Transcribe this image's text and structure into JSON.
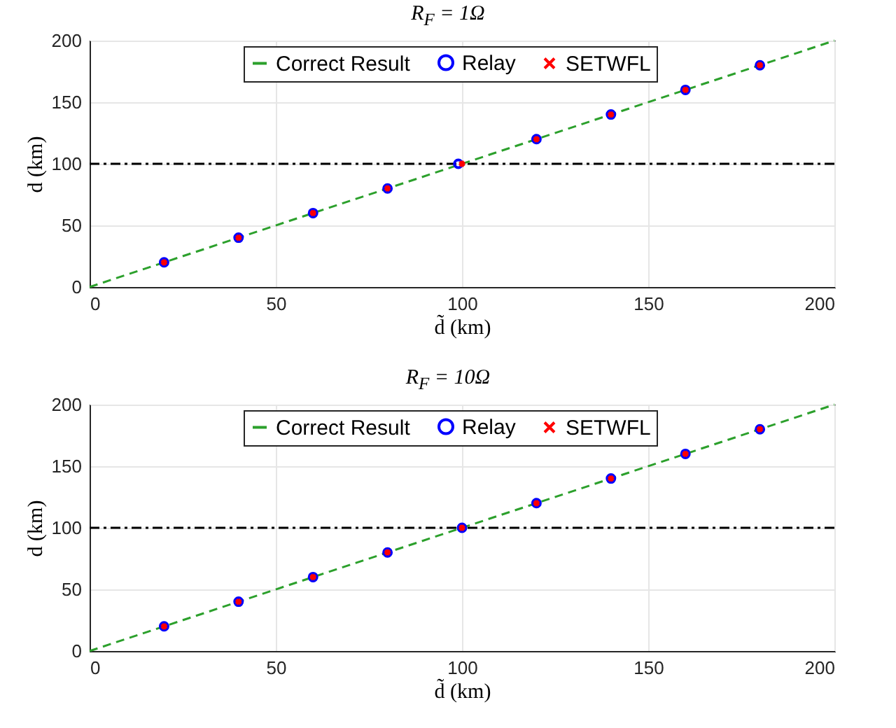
{
  "chart_data": [
    {
      "type": "scatter",
      "title": "R$_{F}$ = 1Ω",
      "xlabel": "d̃ (km)",
      "ylabel": "d (km)",
      "xlim": [
        0,
        200
      ],
      "ylim": [
        0,
        200
      ],
      "xticks": [
        0,
        50,
        100,
        150,
        200
      ],
      "yticks": [
        0,
        50,
        100,
        150,
        200
      ],
      "grid": true,
      "legend": "top",
      "series": [
        {
          "name": "Correct Result",
          "type": "line",
          "line_style": "dashed",
          "marker": "none",
          "color": "#2ca02c",
          "x": [
            0,
            200
          ],
          "values": [
            0,
            200
          ]
        },
        {
          "name": "Relay",
          "type": "scatter",
          "marker": "circle",
          "color": "#0000ff",
          "x": [
            20,
            40,
            60,
            80,
            99,
            120,
            140,
            160,
            180
          ],
          "values": [
            20,
            40,
            60,
            80,
            100,
            120,
            140,
            160,
            180
          ]
        },
        {
          "name": "SETWFL",
          "type": "scatter",
          "marker": "cross",
          "color": "#ff0000",
          "x": [
            20,
            40,
            60,
            80,
            100,
            120,
            140,
            160,
            180
          ],
          "values": [
            20,
            40,
            60,
            80,
            100,
            120,
            140,
            160,
            180
          ]
        }
      ],
      "ref_lines": [
        {
          "axis": "y",
          "value": 100,
          "color": "#000000",
          "line_style": "dashdot"
        }
      ]
    },
    {
      "type": "scatter",
      "title": "R$_{F}$ = 10Ω",
      "xlabel": "d̃ (km)",
      "ylabel": "d (km)",
      "xlim": [
        0,
        200
      ],
      "ylim": [
        0,
        200
      ],
      "xticks": [
        0,
        50,
        100,
        150,
        200
      ],
      "yticks": [
        0,
        50,
        100,
        150,
        200
      ],
      "grid": true,
      "legend": "top",
      "series": [
        {
          "name": "Correct Result",
          "type": "line",
          "line_style": "dashed",
          "marker": "none",
          "color": "#2ca02c",
          "x": [
            0,
            200
          ],
          "values": [
            0,
            200
          ]
        },
        {
          "name": "Relay",
          "type": "scatter",
          "marker": "circle",
          "color": "#0000ff",
          "x": [
            20,
            40,
            60,
            80,
            100,
            120,
            140,
            160,
            180
          ],
          "values": [
            20,
            40,
            60,
            80,
            100,
            120,
            140,
            160,
            180
          ]
        },
        {
          "name": "SETWFL",
          "type": "scatter",
          "marker": "cross",
          "color": "#ff0000",
          "x": [
            20,
            40,
            60,
            80,
            100,
            120,
            140,
            160,
            180
          ],
          "values": [
            20,
            40,
            60,
            80,
            100,
            120,
            140,
            160,
            180
          ]
        }
      ],
      "ref_lines": [
        {
          "axis": "y",
          "value": 100,
          "color": "#000000",
          "line_style": "dashdot"
        }
      ]
    }
  ]
}
